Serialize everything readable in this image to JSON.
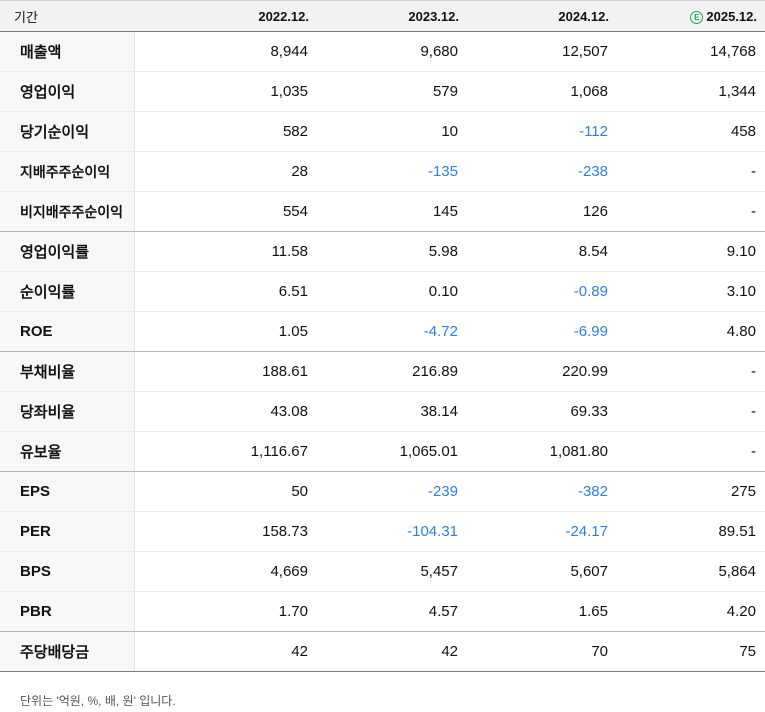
{
  "header": {
    "period_label": "기간",
    "estimate_badge": "E",
    "columns": [
      "2022.12.",
      "2023.12.",
      "2024.12.",
      "2025.12."
    ]
  },
  "rows": [
    {
      "label": "매출액",
      "values": [
        "8,944",
        "9,680",
        "12,507",
        "14,768"
      ]
    },
    {
      "label": "영업이익",
      "values": [
        "1,035",
        "579",
        "1,068",
        "1,344"
      ]
    },
    {
      "label": "당기순이익",
      "values": [
        "582",
        "10",
        "-112",
        "458"
      ]
    },
    {
      "label": "지배주주순이익",
      "values": [
        "28",
        "-135",
        "-238",
        "-"
      ]
    },
    {
      "label": "비지배주주순이익",
      "values": [
        "554",
        "145",
        "126",
        "-"
      ]
    },
    {
      "label": "영업이익률",
      "values": [
        "11.58",
        "5.98",
        "8.54",
        "9.10"
      ]
    },
    {
      "label": "순이익률",
      "values": [
        "6.51",
        "0.10",
        "-0.89",
        "3.10"
      ]
    },
    {
      "label": "ROE",
      "values": [
        "1.05",
        "-4.72",
        "-6.99",
        "4.80"
      ]
    },
    {
      "label": "부채비율",
      "values": [
        "188.61",
        "216.89",
        "220.99",
        "-"
      ]
    },
    {
      "label": "당좌비율",
      "values": [
        "43.08",
        "38.14",
        "69.33",
        "-"
      ]
    },
    {
      "label": "유보율",
      "values": [
        "1,116.67",
        "1,065.01",
        "1,081.80",
        "-"
      ]
    },
    {
      "label": "EPS",
      "values": [
        "50",
        "-239",
        "-382",
        "275"
      ]
    },
    {
      "label": "PER",
      "values": [
        "158.73",
        "-104.31",
        "-24.17",
        "89.51"
      ]
    },
    {
      "label": "BPS",
      "values": [
        "4,669",
        "5,457",
        "5,607",
        "5,864"
      ]
    },
    {
      "label": "PBR",
      "values": [
        "1.70",
        "4.57",
        "1.65",
        "4.20"
      ]
    },
    {
      "label": "주당배당금",
      "values": [
        "42",
        "42",
        "70",
        "75"
      ]
    }
  ],
  "footnote": "단위는 '억원, %, 배, 원' 입니다.",
  "colors": {
    "negative": "#2f7fe0",
    "estimate_badge": "#1aa55a"
  }
}
